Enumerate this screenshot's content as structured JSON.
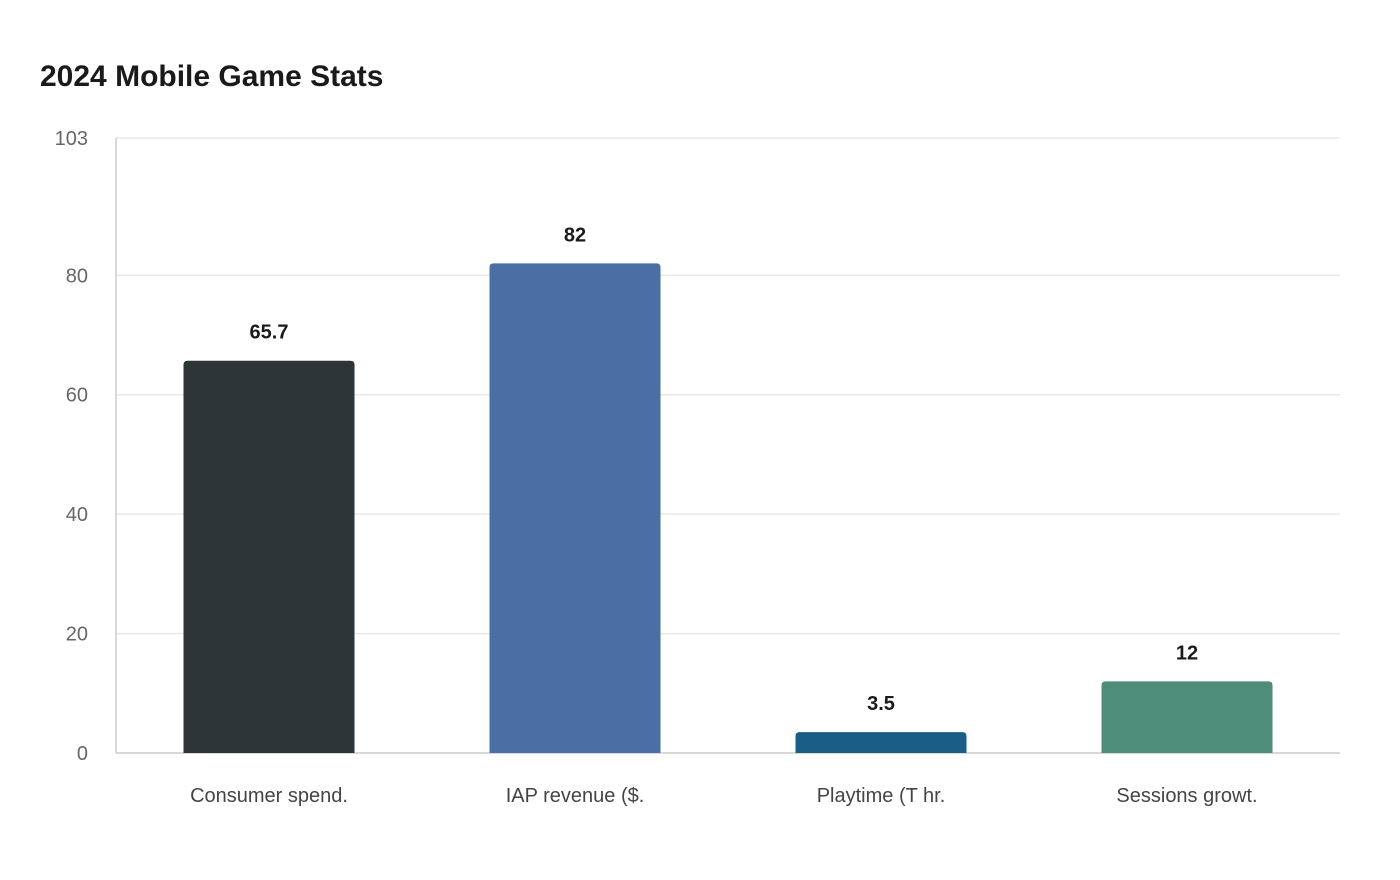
{
  "chart_data": {
    "type": "bar",
    "title": "2024 Mobile Game Stats",
    "xlabel": "",
    "ylabel": "",
    "ylim": [
      0,
      103
    ],
    "yticks": [
      0,
      20,
      40,
      60,
      80,
      103
    ],
    "grid": true,
    "categories": [
      "Consumer spend.",
      "IAP revenue ($.",
      "Playtime (T hr.",
      "Sessions growt."
    ],
    "values": [
      65.7,
      82,
      3.5,
      12
    ],
    "value_labels": [
      "65.7",
      "82",
      "3.5",
      "12"
    ],
    "colors": [
      "#2e3538",
      "#4a6fa5",
      "#1b5e85",
      "#4e8d7a"
    ]
  }
}
